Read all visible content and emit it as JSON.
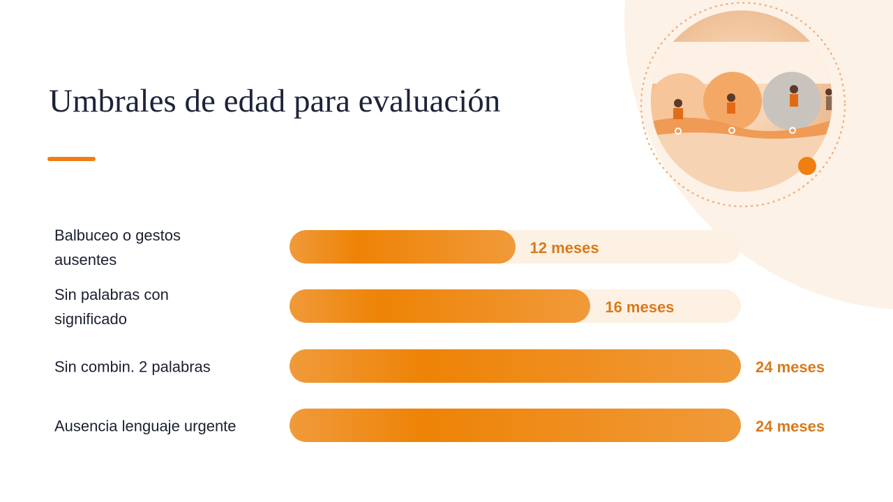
{
  "chart_data": {
    "type": "bar",
    "orientation": "horizontal",
    "title": "Umbrales de edad para evaluación",
    "categories": [
      "Balbuceo o gestos ausentes",
      "Sin palabras con significado",
      "Sin combin. 2 palabras",
      "Ausencia lenguaje urgente"
    ],
    "values": [
      12,
      16,
      24,
      24
    ],
    "value_labels": [
      "12 meses",
      "16 meses",
      "24 meses",
      "24 meses"
    ],
    "xlim": [
      0,
      24
    ],
    "color": "#ef8a1c"
  }
}
